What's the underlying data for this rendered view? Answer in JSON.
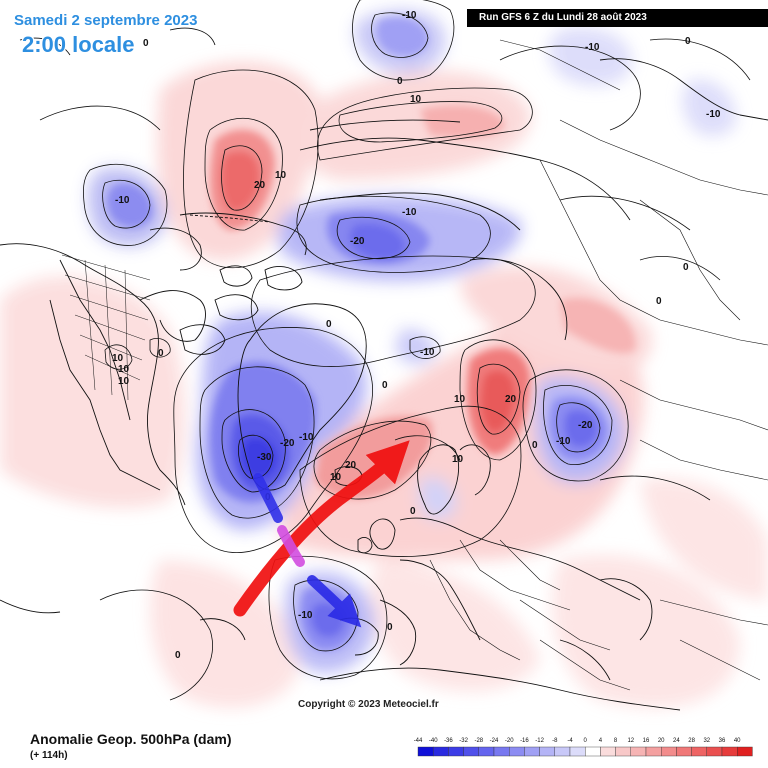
{
  "header": {
    "date_title": "Samedi 2 septembre 2023",
    "time_title": "2:00 locale",
    "run_info": "Run GFS 6 Z du Lundi 28 août 2023"
  },
  "footer": {
    "param_title": "Anomalie Geop. 500hPa (dam)",
    "lead_time": "(+ 114h)",
    "copyright": "Copyright © 2023 Meteociel.fr"
  },
  "legend": {
    "values": [
      "-44",
      "-40",
      "-36",
      "-32",
      "-28",
      "-24",
      "-20",
      "-16",
      "-12",
      "-8",
      "-4",
      "0",
      "4",
      "8",
      "12",
      "16",
      "20",
      "24",
      "28",
      "32",
      "36",
      "40"
    ],
    "colors": [
      "#1010d8",
      "#2a2ae0",
      "#3c3ce6",
      "#5050ea",
      "#6464ee",
      "#7878f0",
      "#8c8cf2",
      "#a0a0f4",
      "#b4b4f6",
      "#c8c8f8",
      "#dcdcfa",
      "#ffffff",
      "#fadcdc",
      "#f8c8c8",
      "#f6b4b4",
      "#f4a0a0",
      "#f28c8c",
      "#f07878",
      "#ee6464",
      "#ea5050",
      "#e63c3c",
      "#e02020"
    ]
  },
  "contour_labels": [
    {
      "text": "-10"
    },
    {
      "text": "0"
    },
    {
      "text": "-10"
    },
    {
      "text": "0"
    },
    {
      "text": "-10"
    },
    {
      "text": "10"
    },
    {
      "text": "-10"
    },
    {
      "text": "20"
    },
    {
      "text": "10"
    },
    {
      "text": "0"
    },
    {
      "text": "-10"
    },
    {
      "text": "-20"
    },
    {
      "text": "0"
    },
    {
      "text": "0"
    },
    {
      "text": "10"
    },
    {
      "text": "10"
    },
    {
      "text": "10"
    },
    {
      "text": "0"
    },
    {
      "text": "0"
    },
    {
      "text": "-10"
    },
    {
      "text": "0"
    },
    {
      "text": "10"
    },
    {
      "text": "20"
    },
    {
      "text": "10"
    },
    {
      "text": "-10"
    },
    {
      "text": "-20"
    },
    {
      "text": "0"
    },
    {
      "text": "-20"
    },
    {
      "text": "-10"
    },
    {
      "text": "-30"
    },
    {
      "text": "20"
    },
    {
      "text": "10"
    },
    {
      "text": "0"
    },
    {
      "text": "0"
    },
    {
      "text": "-10"
    },
    {
      "text": "0"
    },
    {
      "text": "0"
    }
  ]
}
